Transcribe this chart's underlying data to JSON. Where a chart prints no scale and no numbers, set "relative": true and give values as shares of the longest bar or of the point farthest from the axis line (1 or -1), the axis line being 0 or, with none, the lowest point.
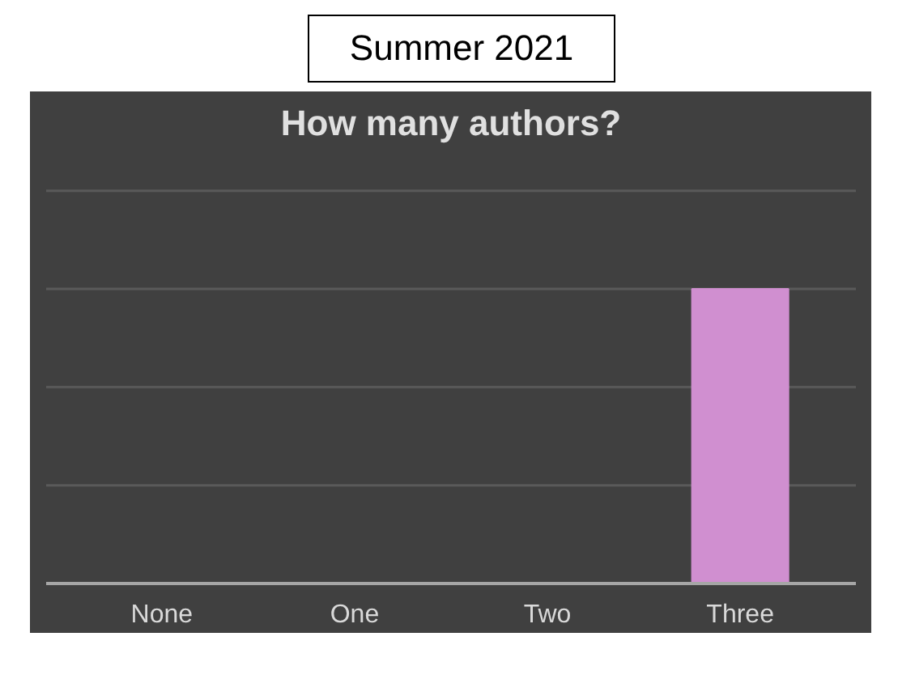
{
  "chart_data": {
    "type": "bar",
    "title": "How many authors?",
    "annotations": [
      "Summer 2021"
    ],
    "categories": [
      "None",
      "One",
      "Two",
      "Three"
    ],
    "values": [
      0,
      0,
      0,
      1
    ],
    "color": "#d08fd0",
    "relative": true,
    "ref_lines": [
      {
        "axis": "y",
        "value": 0.333,
        "color": "#5a5a5a"
      },
      {
        "axis": "y",
        "value": 0.667,
        "color": "#5a5a5a"
      },
      {
        "axis": "y",
        "value": 1,
        "color": "#5a5a5a"
      },
      {
        "axis": "y",
        "value": 1.333,
        "color": "#5a5a5a"
      }
    ]
  }
}
